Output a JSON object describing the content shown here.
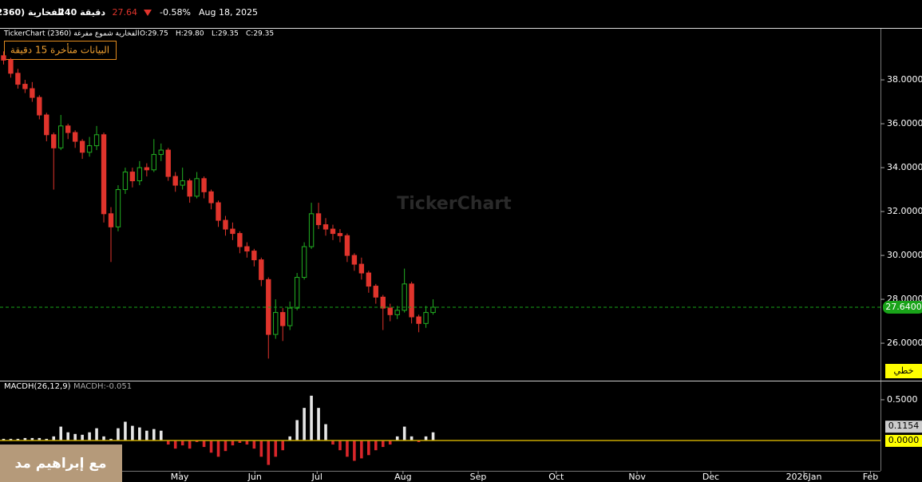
{
  "header": {
    "symbol": "(2360) الفخارية",
    "interval": "240 دقيقة",
    "price": "27.64",
    "change": "-0.58%",
    "date": "Aug 18, 2025"
  },
  "info": {
    "source": "TickerChart (2360) الفخارية شموع مفرغة",
    "open": "O:29.75",
    "high": "H:29.80",
    "low": "L:29.35",
    "close": "C:29.35",
    "delay": "البيانات متأخرة 15 دقيقة",
    "watermark": "TickerChart",
    "style_tag": "خطي",
    "credit": "مع إبراهيم مد"
  },
  "chart_data": [
    {
      "type": "candlestick",
      "up_color": "#22b022",
      "down_color": "#e0342c",
      "x": [
        0,
        1,
        2,
        3,
        4,
        5,
        6,
        7,
        8,
        9,
        10,
        11,
        12,
        13,
        14,
        15,
        16,
        17,
        18,
        19,
        20,
        21,
        22,
        23,
        24,
        25,
        26,
        27,
        28,
        29,
        30,
        31,
        32,
        33,
        34,
        35,
        36,
        37,
        38,
        39,
        40,
        41,
        42,
        43,
        44,
        45,
        46,
        47,
        48,
        49,
        50,
        51,
        52,
        53,
        54,
        55,
        56,
        57,
        58,
        59,
        60
      ],
      "open": [
        39.1,
        38.9,
        38.3,
        37.8,
        37.6,
        37.2,
        36.4,
        35.5,
        34.9,
        35.9,
        35.6,
        35.2,
        34.7,
        35.0,
        35.5,
        31.9,
        31.3,
        33.0,
        33.8,
        33.4,
        34.0,
        33.9,
        34.6,
        34.8,
        33.6,
        33.2,
        33.4,
        32.7,
        33.5,
        32.9,
        32.4,
        31.6,
        31.2,
        31.0,
        30.4,
        30.2,
        29.8,
        28.9,
        26.4,
        27.4,
        26.8,
        27.6,
        29.0,
        30.4,
        31.9,
        31.4,
        31.2,
        31.0,
        30.9,
        30.0,
        29.6,
        29.2,
        28.6,
        28.1,
        27.6,
        27.3,
        27.5,
        28.7,
        27.2,
        26.9,
        27.4
      ],
      "high": [
        39.3,
        39.0,
        38.5,
        38.0,
        37.9,
        37.3,
        36.5,
        35.6,
        36.4,
        36.0,
        35.7,
        35.3,
        35.4,
        35.9,
        35.6,
        32.2,
        33.2,
        34.0,
        34.0,
        34.3,
        34.2,
        35.3,
        35.1,
        34.9,
        33.8,
        34.0,
        33.5,
        33.8,
        33.6,
        33.0,
        32.5,
        31.8,
        31.5,
        31.1,
        30.6,
        30.3,
        29.9,
        29.0,
        28.0,
        27.6,
        27.9,
        29.2,
        30.6,
        32.4,
        32.4,
        31.7,
        31.4,
        31.2,
        31.0,
        30.1,
        29.9,
        29.3,
        28.7,
        28.2,
        27.8,
        27.7,
        29.4,
        28.8,
        27.3,
        27.7,
        28.0
      ],
      "low": [
        38.7,
        38.1,
        37.6,
        37.4,
        37.0,
        36.2,
        35.2,
        33.0,
        34.8,
        35.3,
        34.9,
        34.4,
        34.5,
        34.8,
        31.5,
        29.7,
        31.1,
        32.8,
        33.1,
        33.2,
        33.6,
        33.8,
        34.3,
        33.4,
        32.9,
        33.0,
        32.4,
        32.6,
        32.6,
        32.1,
        31.3,
        30.9,
        30.7,
        30.1,
        29.9,
        29.5,
        28.6,
        25.3,
        26.2,
        26.1,
        26.6,
        27.5,
        28.9,
        30.3,
        31.2,
        30.9,
        30.7,
        30.6,
        29.7,
        29.3,
        28.9,
        28.3,
        27.8,
        26.6,
        27.0,
        27.1,
        27.4,
        26.9,
        26.5,
        26.7,
        27.3
      ],
      "close": [
        38.9,
        38.3,
        37.8,
        37.6,
        37.2,
        36.4,
        35.5,
        34.9,
        35.9,
        35.6,
        35.2,
        34.7,
        35.0,
        35.5,
        31.9,
        31.3,
        33.0,
        33.8,
        33.4,
        34.0,
        33.9,
        34.6,
        34.8,
        33.6,
        33.2,
        33.4,
        32.7,
        33.5,
        32.9,
        32.4,
        31.6,
        31.2,
        31.0,
        30.4,
        30.2,
        29.8,
        28.9,
        26.4,
        27.4,
        26.8,
        27.6,
        29.0,
        30.4,
        31.9,
        31.4,
        31.2,
        31.0,
        30.9,
        30.0,
        29.6,
        29.2,
        28.6,
        28.1,
        27.6,
        27.3,
        27.5,
        28.7,
        27.2,
        26.9,
        27.4,
        27.64
      ],
      "xlim": [
        -0.5,
        122.5
      ],
      "ylim": [
        24.33,
        40.33
      ],
      "yticks": [
        {
          "value": 26,
          "label": "26.0000"
        },
        {
          "value": 28,
          "label": "28.0000"
        },
        {
          "value": 30,
          "label": "30.0000"
        },
        {
          "value": 32,
          "label": "32.0000"
        },
        {
          "value": 34,
          "label": "34.0000"
        },
        {
          "value": 36,
          "label": "36.0000"
        },
        {
          "value": 38,
          "label": "38.0000"
        }
      ],
      "last_price": {
        "value": 27.64,
        "label": "27.6400"
      },
      "last_color": "#19a319"
    },
    {
      "type": "histogram-bar",
      "name": "MACDH(26,12,9)",
      "current": "MACDH:-0.051",
      "pos_color": "#e6e6e6",
      "neg_color": "#d9262a",
      "x": [
        0,
        1,
        2,
        3,
        4,
        5,
        6,
        7,
        8,
        9,
        10,
        11,
        12,
        13,
        14,
        15,
        16,
        17,
        18,
        19,
        20,
        21,
        22,
        23,
        24,
        25,
        26,
        27,
        28,
        29,
        30,
        31,
        32,
        33,
        34,
        35,
        36,
        37,
        38,
        39,
        40,
        41,
        42,
        43,
        44,
        45,
        46,
        47,
        48,
        49,
        50,
        51,
        52,
        53,
        54,
        55,
        56,
        57,
        58,
        59,
        60
      ],
      "values": [
        0.02,
        0.02,
        0.02,
        0.03,
        0.03,
        0.03,
        0.02,
        0.05,
        0.17,
        0.1,
        0.08,
        0.07,
        0.1,
        0.15,
        0.05,
        0.02,
        0.15,
        0.23,
        0.18,
        0.16,
        0.12,
        0.14,
        0.12,
        -0.05,
        -0.1,
        -0.06,
        -0.1,
        -0.02,
        -0.08,
        -0.15,
        -0.2,
        -0.13,
        -0.06,
        -0.03,
        -0.05,
        -0.1,
        -0.2,
        -0.3,
        -0.2,
        -0.12,
        0.05,
        0.25,
        0.4,
        0.55,
        0.4,
        0.2,
        -0.05,
        -0.12,
        -0.2,
        -0.25,
        -0.22,
        -0.18,
        -0.12,
        -0.08,
        -0.05,
        0.05,
        0.17,
        0.05,
        -0.02,
        0.05,
        0.1
      ],
      "xlim": [
        -0.5,
        122.5
      ],
      "ylim": [
        -0.373,
        0.725
      ],
      "yticks": [
        {
          "value": 0.5,
          "label": "0.5000"
        }
      ],
      "tags": [
        0.1154,
        {
          "value": 0,
          "label": "0.0000"
        }
      ],
      "xticks": [
        {
          "value": 24.6,
          "label": "May"
        },
        {
          "value": 35.1,
          "label": "Jun"
        },
        {
          "value": 43.8,
          "label": "Jul"
        },
        {
          "value": 55.8,
          "label": "Aug"
        },
        {
          "value": 66.3,
          "label": "Sep"
        },
        {
          "value": 77.2,
          "label": "Oct"
        },
        {
          "value": 88.5,
          "label": "Nov"
        },
        {
          "value": 98.8,
          "label": "Dec"
        },
        {
          "value": 111.8,
          "label": "2026Jan"
        },
        {
          "value": 121.1,
          "label": "Feb"
        }
      ]
    }
  ]
}
